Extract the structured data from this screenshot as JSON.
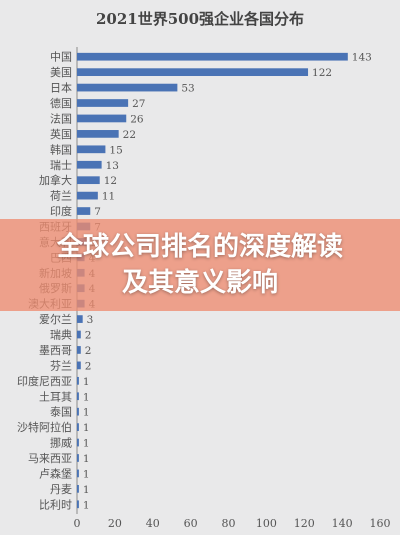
{
  "chart_data": {
    "type": "bar",
    "orientation": "horizontal",
    "title": "2021世界500强企业各国分布",
    "categories": [
      "中国",
      "美国",
      "日本",
      "德国",
      "法国",
      "英国",
      "韩国",
      "瑞士",
      "加拿大",
      "荷兰",
      "印度",
      "西班牙",
      "意大利",
      "巴西",
      "新加坡",
      "俄罗斯",
      "澳大利亚",
      "爱尔兰",
      "瑞典",
      "墨西哥",
      "芬兰",
      "印度尼西亚",
      "土耳其",
      "泰国",
      "沙特阿拉伯",
      "挪威",
      "马来西亚",
      "卢森堡",
      "丹麦",
      "比利时"
    ],
    "values": [
      143,
      122,
      53,
      27,
      26,
      22,
      15,
      13,
      12,
      11,
      7,
      7,
      5,
      4,
      4,
      4,
      4,
      3,
      2,
      2,
      2,
      1,
      1,
      1,
      1,
      1,
      1,
      1,
      1,
      1
    ],
    "data_labels": [
      "143",
      "122",
      "53",
      "27",
      "26",
      "22",
      "15",
      "13",
      "12",
      "11",
      "7",
      "7",
      "5",
      "4",
      "4",
      "4",
      "4",
      "3",
      "2",
      "2",
      "2",
      "1",
      "1",
      "1",
      "1",
      "1",
      "1",
      "1",
      "1",
      "1"
    ],
    "xlim": [
      0,
      160
    ],
    "xticks": [
      "0",
      "20",
      "40",
      "60",
      "80",
      "100",
      "120",
      "140",
      "160"
    ],
    "xlabel": "",
    "ylabel": "",
    "grid": false,
    "bar_color": "#4a73b5"
  },
  "overlay": {
    "banner_text": "全球公司排名的深度解读及其意义影响"
  }
}
